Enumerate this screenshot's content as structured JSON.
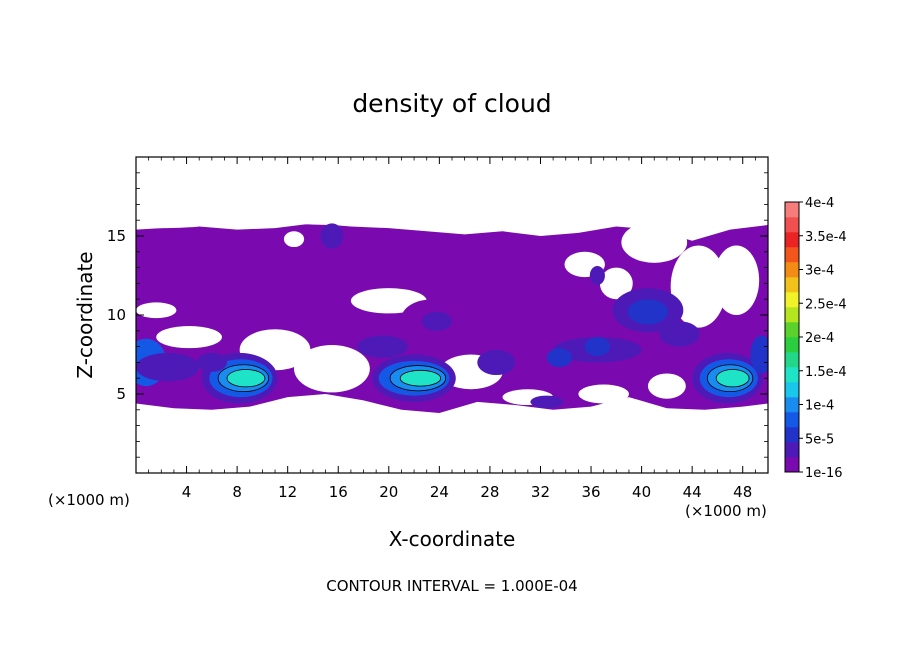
{
  "chart_data": {
    "type": "heatmap",
    "title": "density of cloud",
    "xlabel": "X-coordinate",
    "ylabel": "Z-coordinate",
    "x_unit_left": "(×1000 m)",
    "x_unit_right": "(×1000 m)",
    "xlim": [
      0,
      50
    ],
    "ylim": [
      0,
      20
    ],
    "x_ticks": [
      4,
      8,
      12,
      16,
      20,
      24,
      28,
      32,
      36,
      40,
      44,
      48
    ],
    "x_tick_labels": [
      "4",
      "8",
      "12",
      "16",
      "20",
      "24",
      "28",
      "32",
      "36",
      "40",
      "44",
      "48"
    ],
    "y_ticks": [
      5,
      10,
      15
    ],
    "y_tick_labels": [
      "5",
      "10",
      "15"
    ],
    "colorbar": {
      "labels": [
        "1e-16",
        "5e-5",
        "1e-4",
        "1.5e-4",
        "2e-4",
        "2.5e-4",
        "3e-4",
        "3.5e-4",
        "4e-4"
      ],
      "label_values": [
        0,
        5e-05,
        0.0001,
        0.00015,
        0.0002,
        0.00025,
        0.0003,
        0.00035,
        0.0004
      ],
      "colors": [
        "#7a0aaf",
        "#4d1ab8",
        "#2233c9",
        "#1458e6",
        "#1a8cf0",
        "#19c6ec",
        "#1ee3c6",
        "#22d888",
        "#2ace3f",
        "#5ad22b",
        "#b5e51f",
        "#f2f22a",
        "#f2c21c",
        "#f28c16",
        "#f2561c",
        "#ea2424",
        "#f25050",
        "#f77c7c"
      ]
    },
    "footnote": "CONTOUR INTERVAL = 1.000E-04",
    "base_layer": {
      "value": 1e-05,
      "upper_band": [
        [
          0,
          15.4
        ],
        [
          2,
          15.5
        ],
        [
          5,
          15.6
        ],
        [
          8,
          15.4
        ],
        [
          11,
          15.5
        ],
        [
          14,
          15.8
        ],
        [
          17,
          15.6
        ],
        [
          20,
          15.5
        ],
        [
          23,
          15.3
        ],
        [
          26,
          15.1
        ],
        [
          29,
          15.3
        ],
        [
          32,
          15.0
        ],
        [
          35,
          15.2
        ],
        [
          38,
          15.6
        ],
        [
          41,
          15.4
        ],
        [
          44,
          14.7
        ],
        [
          47,
          15.4
        ],
        [
          50,
          15.7
        ]
      ],
      "lower_band": [
        [
          0,
          4.4
        ],
        [
          3,
          4.1
        ],
        [
          6,
          4.0
        ],
        [
          9,
          4.2
        ],
        [
          12,
          4.8
        ],
        [
          15,
          5.0
        ],
        [
          18,
          4.6
        ],
        [
          21,
          4.0
        ],
        [
          24,
          3.8
        ],
        [
          27,
          4.5
        ],
        [
          30,
          4.3
        ],
        [
          33,
          4.0
        ],
        [
          36,
          4.2
        ],
        [
          39,
          4.8
        ],
        [
          42,
          4.1
        ],
        [
          45,
          4.0
        ],
        [
          48,
          4.2
        ],
        [
          50,
          4.4
        ]
      ]
    },
    "clear_gaps": [
      {
        "x": 1.6,
        "z": 10.3,
        "rx": 1.6,
        "rz": 0.5
      },
      {
        "x": 4.2,
        "z": 8.6,
        "rx": 2.6,
        "rz": 0.7
      },
      {
        "x": 11.0,
        "z": 7.8,
        "rx": 2.8,
        "rz": 1.3
      },
      {
        "x": 15.5,
        "z": 6.6,
        "rx": 3.0,
        "rz": 1.5
      },
      {
        "x": 20.0,
        "z": 10.9,
        "rx": 3.0,
        "rz": 0.8
      },
      {
        "x": 26.5,
        "z": 6.4,
        "rx": 2.5,
        "rz": 1.1
      },
      {
        "x": 31.0,
        "z": 4.8,
        "rx": 2.0,
        "rz": 0.5
      },
      {
        "x": 37.0,
        "z": 5.0,
        "rx": 2.0,
        "rz": 0.6
      },
      {
        "x": 35.5,
        "z": 13.2,
        "rx": 1.6,
        "rz": 0.8
      },
      {
        "x": 38.0,
        "z": 12.0,
        "rx": 1.3,
        "rz": 1.0
      },
      {
        "x": 41.0,
        "z": 14.6,
        "rx": 2.6,
        "rz": 1.3
      },
      {
        "x": 44.5,
        "z": 11.8,
        "rx": 2.2,
        "rz": 2.6
      },
      {
        "x": 47.5,
        "z": 12.2,
        "rx": 1.8,
        "rz": 2.2
      },
      {
        "x": 42.0,
        "z": 5.5,
        "rx": 1.5,
        "rz": 0.8
      },
      {
        "x": 2.0,
        "z": 15.8,
        "rx": 4.0,
        "rz": 0.3
      },
      {
        "x": 16.0,
        "z": 16.0,
        "rx": 5.0,
        "rz": 0.3
      },
      {
        "x": 12.5,
        "z": 14.8,
        "rx": 0.8,
        "rz": 0.5
      }
    ],
    "cells": [
      {
        "x": 0.8,
        "z": 7.0,
        "rx": 1.6,
        "rz": 1.5,
        "value": 8e-05
      },
      {
        "x": 2.5,
        "z": 6.7,
        "rx": 2.5,
        "rz": 0.9,
        "value": 4e-05
      },
      {
        "x": 8.2,
        "z": 6.0,
        "rx": 3.0,
        "rz": 1.6,
        "value": 4e-05
      },
      {
        "x": 8.3,
        "z": 6.0,
        "rx": 2.5,
        "rz": 1.2,
        "value": 7e-05
      },
      {
        "x": 8.5,
        "z": 6.0,
        "rx": 2.0,
        "rz": 0.85,
        "value": 0.00011
      },
      {
        "x": 8.7,
        "z": 6.0,
        "rx": 1.5,
        "rz": 0.55,
        "value": 0.00014
      },
      {
        "x": 22.0,
        "z": 6.0,
        "rx": 3.3,
        "rz": 1.5,
        "value": 4e-05
      },
      {
        "x": 22.0,
        "z": 6.0,
        "rx": 2.8,
        "rz": 1.1,
        "value": 7e-05
      },
      {
        "x": 22.3,
        "z": 6.0,
        "rx": 2.2,
        "rz": 0.8,
        "value": 0.00011
      },
      {
        "x": 22.5,
        "z": 6.0,
        "rx": 1.6,
        "rz": 0.5,
        "value": 0.00014
      },
      {
        "x": 46.8,
        "z": 6.0,
        "rx": 2.8,
        "rz": 1.6,
        "value": 4e-05
      },
      {
        "x": 46.9,
        "z": 6.0,
        "rx": 2.3,
        "rz": 1.2,
        "value": 7e-05
      },
      {
        "x": 47.0,
        "z": 6.0,
        "rx": 1.8,
        "rz": 0.85,
        "value": 0.00011
      },
      {
        "x": 47.2,
        "z": 6.0,
        "rx": 1.3,
        "rz": 0.55,
        "value": 0.00014
      },
      {
        "x": 49.5,
        "z": 7.5,
        "rx": 0.9,
        "rz": 1.2,
        "value": 6e-05
      },
      {
        "x": 40.5,
        "z": 10.3,
        "rx": 2.8,
        "rz": 1.4,
        "value": 3e-05
      },
      {
        "x": 40.5,
        "z": 10.2,
        "rx": 1.6,
        "rz": 0.8,
        "value": 6e-05
      },
      {
        "x": 43.0,
        "z": 8.8,
        "rx": 1.6,
        "rz": 0.8,
        "value": 4e-05
      },
      {
        "x": 36.5,
        "z": 7.8,
        "rx": 3.5,
        "rz": 0.8,
        "value": 3e-05
      },
      {
        "x": 33.5,
        "z": 7.3,
        "rx": 1.0,
        "rz": 0.6,
        "value": 5e-05
      },
      {
        "x": 36.5,
        "z": 8.0,
        "rx": 1.0,
        "rz": 0.6,
        "value": 5e-05
      },
      {
        "x": 23.5,
        "z": 9.8,
        "rx": 2.5,
        "rz": 1.2,
        "value": 2e-05
      },
      {
        "x": 23.8,
        "z": 9.6,
        "rx": 1.2,
        "rz": 0.6,
        "value": 4e-05
      },
      {
        "x": 15.5,
        "z": 15.0,
        "rx": 0.9,
        "rz": 0.8,
        "value": 3e-05
      },
      {
        "x": 26.5,
        "z": 12.3,
        "rx": 1.3,
        "rz": 1.2,
        "value": 2e-05
      },
      {
        "x": 11.5,
        "z": 12.3,
        "rx": 1.3,
        "rz": 1.0,
        "value": 2e-05
      },
      {
        "x": 17.5,
        "z": 13.8,
        "rx": 1.0,
        "rz": 0.6,
        "value": 2e-05
      },
      {
        "x": 19.5,
        "z": 8.0,
        "rx": 2.0,
        "rz": 0.7,
        "value": 3e-05
      },
      {
        "x": 32.5,
        "z": 4.5,
        "rx": 1.3,
        "rz": 0.4,
        "value": 3e-05
      },
      {
        "x": 6.0,
        "z": 7.0,
        "rx": 1.2,
        "rz": 0.6,
        "value": 3e-05
      },
      {
        "x": 28.5,
        "z": 7.0,
        "rx": 1.5,
        "rz": 0.8,
        "value": 3e-05
      },
      {
        "x": 36.5,
        "z": 12.5,
        "rx": 0.6,
        "rz": 0.6,
        "value": 3e-05
      }
    ]
  }
}
